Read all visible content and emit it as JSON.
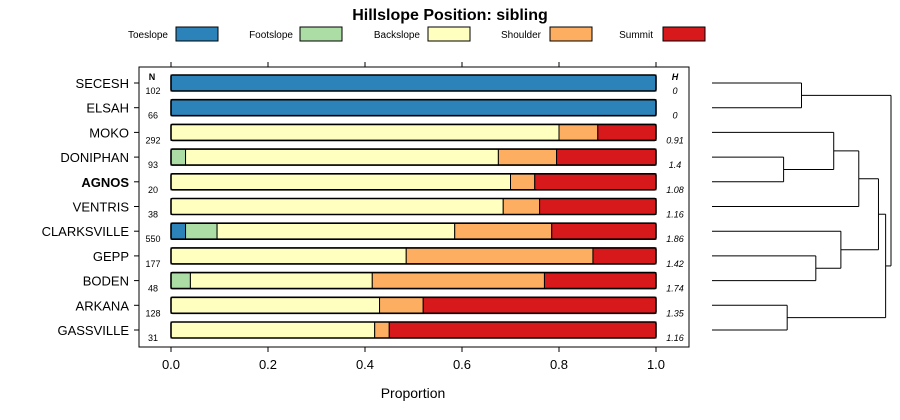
{
  "chart_data": {
    "type": "bar",
    "stacked": true,
    "orientation": "horizontal",
    "title": "Hillslope Position: sibling",
    "xlabel": "Proportion",
    "xlim": [
      0,
      1
    ],
    "xticks": [
      "0.0",
      "0.2",
      "0.4",
      "0.6",
      "0.8",
      "1.0"
    ],
    "legend_position": "top",
    "n_header": "N",
    "h_header": "H",
    "highlight_category": "AGNOS",
    "categories": [
      "SECESH",
      "ELSAH",
      "MOKO",
      "DONIPHAN",
      "AGNOS",
      "VENTRIS",
      "CLARKSVILLE",
      "GEPP",
      "BODEN",
      "ARKANA",
      "GASSVILLE"
    ],
    "n": [
      "102",
      "66",
      "292",
      "93",
      "20",
      "38",
      "550",
      "177",
      "48",
      "128",
      "31"
    ],
    "h": [
      "0",
      "0",
      "0.91",
      "1.4",
      "1.08",
      "1.16",
      "1.86",
      "1.42",
      "1.74",
      "1.35",
      "1.16"
    ],
    "series": [
      {
        "name": "Toeslope",
        "color": "#2b83ba",
        "values": [
          1.0,
          1.0,
          0,
          0,
          0,
          0,
          0.03,
          0,
          0,
          0,
          0
        ]
      },
      {
        "name": "Footslope",
        "color": "#abdda4",
        "values": [
          0,
          0,
          0,
          0.03,
          0,
          0,
          0.065,
          0,
          0.04,
          0,
          0
        ]
      },
      {
        "name": "Backslope",
        "color": "#ffffbf",
        "values": [
          0,
          0,
          0.8,
          0.645,
          0.7,
          0.685,
          0.49,
          0.485,
          0.375,
          0.43,
          0.42
        ]
      },
      {
        "name": "Shoulder",
        "color": "#fdae61",
        "values": [
          0,
          0,
          0.08,
          0.12,
          0.05,
          0.075,
          0.2,
          0.385,
          0.355,
          0.09,
          0.03
        ]
      },
      {
        "name": "Summit",
        "color": "#d7191c",
        "values": [
          0,
          0,
          0.12,
          0.205,
          0.25,
          0.24,
          0.215,
          0.13,
          0.23,
          0.48,
          0.55
        ]
      }
    ],
    "dendrogram": {
      "merges": [
        [
          0,
          1,
          0.5
        ],
        [
          9,
          10,
          0.42
        ],
        [
          3,
          4,
          0.4
        ],
        [
          7,
          8,
          0.58
        ],
        [
          2,
          "c2",
          0.68
        ],
        [
          5,
          "c4",
          0.82
        ],
        [
          6,
          "c3",
          0.72
        ],
        [
          "c5",
          "c6",
          0.93
        ],
        [
          "c7",
          "c1",
          0.97
        ],
        [
          "c0",
          "c8",
          1.0
        ]
      ]
    }
  }
}
